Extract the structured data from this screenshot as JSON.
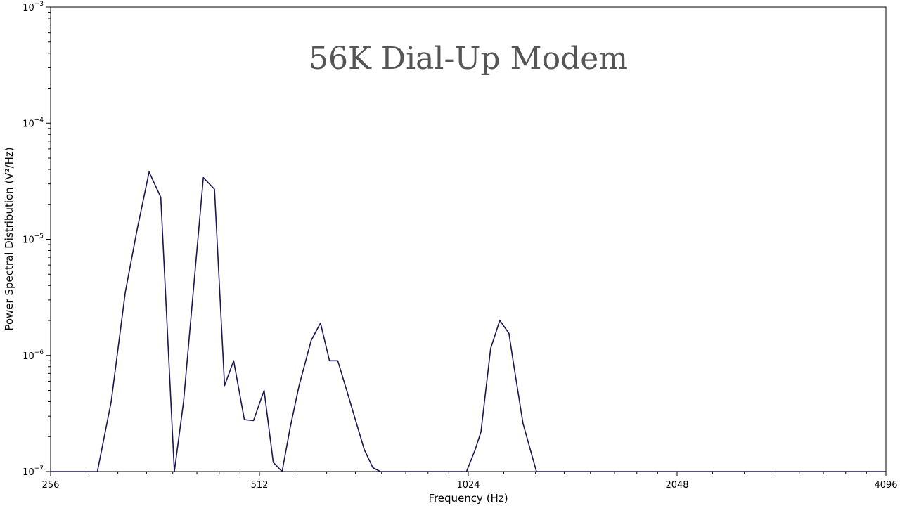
{
  "chart_data": {
    "type": "line",
    "title": "56K Dial-Up Modem",
    "xlabel": "Frequency (Hz)",
    "ylabel": "Power Spectral Distribution (V²/Hz)",
    "x_scale": "log2",
    "y_scale": "log10",
    "xlim": [
      256,
      4096
    ],
    "ylim": [
      1e-07,
      0.001
    ],
    "x_ticks": [
      {
        "value": 256,
        "label": "256"
      },
      {
        "value": 512,
        "label": "512"
      },
      {
        "value": 1024,
        "label": "1024"
      },
      {
        "value": 2048,
        "label": "2048"
      },
      {
        "value": 4096,
        "label": "4096"
      }
    ],
    "y_ticks": [
      {
        "value": 1e-07,
        "mantissa": "10",
        "exponent": "−7"
      },
      {
        "value": 1e-06,
        "mantissa": "10",
        "exponent": "−6"
      },
      {
        "value": 1e-05,
        "mantissa": "10",
        "exponent": "−5"
      },
      {
        "value": 0.0001,
        "mantissa": "10",
        "exponent": "−4"
      },
      {
        "value": 0.001,
        "mantissa": "10",
        "exponent": "−3"
      }
    ],
    "grid": false,
    "line_color": "#1a1650",
    "series": [
      {
        "x": [
          256,
          299,
          313,
          328,
          341,
          355,
          369,
          386,
          398,
          410,
          425,
          441,
          456,
          470,
          487,
          502,
          520,
          536,
          552,
          567,
          584,
          608,
          627,
          646,
          664,
          684,
          704,
          725,
          746,
          765,
          778,
          800,
          888,
          1018,
          1048,
          1068,
          1103,
          1137,
          1172,
          1190,
          1228,
          1284,
          1318,
          1347,
          1370,
          1397,
          2048,
          4096
        ],
        "y": [
          1e-07,
          1e-07,
          4e-07,
          3.5e-06,
          1.2e-05,
          3.8e-05,
          2.3e-05,
          1e-07,
          4e-07,
          3e-06,
          3.4e-05,
          2.7e-05,
          5.5e-07,
          9e-07,
          2.8e-07,
          2.75e-07,
          5e-07,
          1.2e-07,
          1e-07,
          2.4e-07,
          5.5e-07,
          1.35e-06,
          1.9e-06,
          9e-07,
          9e-07,
          5e-07,
          2.8e-07,
          1.55e-07,
          1.08e-07,
          1e-07,
          1e-07,
          1e-07,
          1e-07,
          1e-07,
          1.55e-07,
          2.2e-07,
          1.15e-06,
          2e-06,
          1.55e-06,
          8.5e-07,
          2.6e-07,
          1e-07,
          1e-07,
          1e-07,
          1e-07,
          1e-07,
          1e-07,
          1e-07
        ]
      }
    ]
  }
}
